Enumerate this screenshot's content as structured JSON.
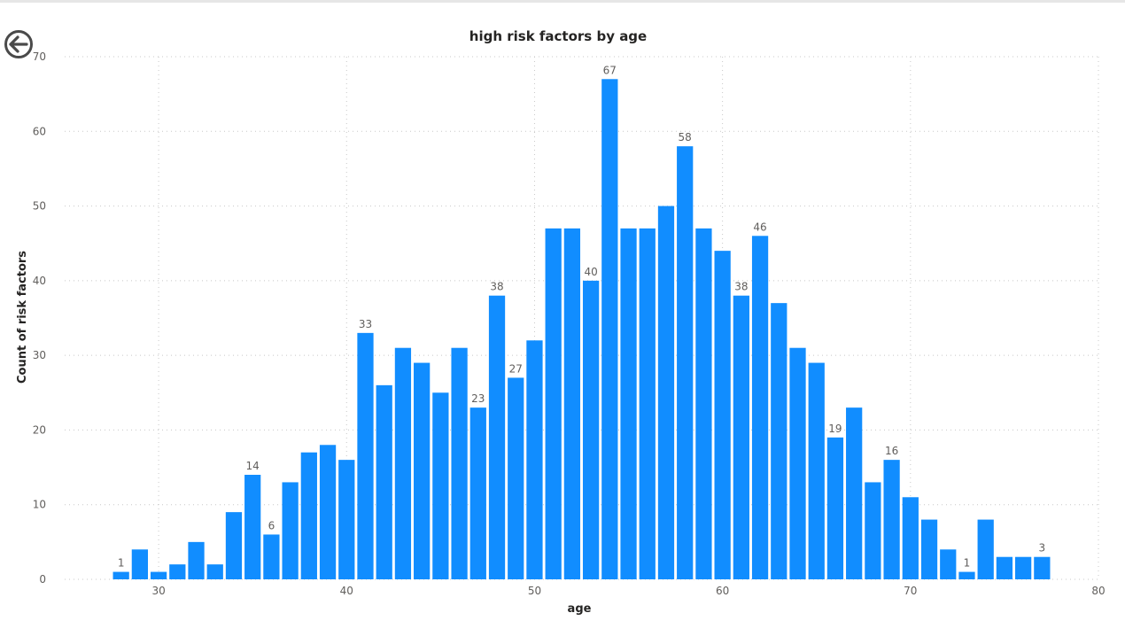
{
  "chart_data": {
    "type": "bar",
    "title": "high risk factors by age",
    "xlabel": "age",
    "ylabel": "Count of risk factors",
    "xlim": [
      25,
      80
    ],
    "ylim": [
      0,
      70
    ],
    "x_ticks": [
      30,
      40,
      50,
      60,
      70,
      80
    ],
    "y_ticks": [
      0,
      10,
      20,
      30,
      40,
      50,
      60,
      70
    ],
    "grid": true,
    "bar_color": "#118DFF",
    "x": [
      28,
      29,
      30,
      31,
      32,
      33,
      34,
      35,
      36,
      37,
      38,
      39,
      40,
      41,
      42,
      43,
      44,
      45,
      46,
      47,
      48,
      49,
      50,
      51,
      52,
      53,
      54,
      55,
      56,
      57,
      58,
      59,
      60,
      61,
      62,
      63,
      64,
      65,
      66,
      67,
      68,
      69,
      70,
      71,
      72,
      73,
      74,
      75,
      76,
      77
    ],
    "values": [
      1,
      4,
      1,
      2,
      5,
      2,
      9,
      14,
      6,
      13,
      17,
      18,
      16,
      33,
      26,
      31,
      29,
      25,
      31,
      23,
      38,
      27,
      32,
      47,
      47,
      40,
      67,
      47,
      47,
      50,
      58,
      47,
      44,
      38,
      46,
      37,
      31,
      29,
      19,
      23,
      13,
      16,
      11,
      8,
      4,
      1,
      8,
      3,
      3,
      3
    ],
    "data_labels": [
      {
        "x": 28,
        "label": "1"
      },
      {
        "x": 35,
        "label": "14"
      },
      {
        "x": 36,
        "label": "6"
      },
      {
        "x": 41,
        "label": "33"
      },
      {
        "x": 47,
        "label": "23"
      },
      {
        "x": 48,
        "label": "38"
      },
      {
        "x": 49,
        "label": "27"
      },
      {
        "x": 53,
        "label": "40"
      },
      {
        "x": 54,
        "label": "67"
      },
      {
        "x": 58,
        "label": "58"
      },
      {
        "x": 61,
        "label": "38"
      },
      {
        "x": 62,
        "label": "46"
      },
      {
        "x": 66,
        "label": "19"
      },
      {
        "x": 69,
        "label": "16"
      },
      {
        "x": 73,
        "label": "1"
      },
      {
        "x": 77,
        "label": "3"
      }
    ]
  },
  "icons": {
    "back": "arrow-left-circle-icon"
  }
}
